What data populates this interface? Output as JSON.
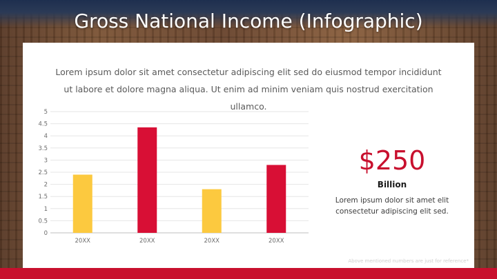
{
  "slide": {
    "title": "Gross National Income (Infographic)",
    "description": "Lorem ipsum dolor sit amet consectetur adipiscing elit sed do eiusmod tempor incididunt ut labore et dolore magna aliqua. Ut enim ad minim veniam quis nostrud exercitation ullamco.",
    "highlight_value": "$250",
    "highlight_unit": "Billion",
    "highlight_text": "Lorem ipsum dolor sit amet elit consectetur adipiscing elit sed.",
    "footnote": "Above mentioned numbers are just for reference*"
  },
  "colors": {
    "accent_red": "#c8102e",
    "bar_yellow": "#fcc93f",
    "bar_red": "#d80f35",
    "footer": "#c8102e"
  },
  "chart_data": {
    "type": "bar",
    "categories": [
      "20XX",
      "20XX",
      "20XX",
      "20XX"
    ],
    "values": [
      2.4,
      4.35,
      1.8,
      2.8
    ],
    "bar_colors": [
      "#fcc93f",
      "#d80f35",
      "#fcc93f",
      "#d80f35"
    ],
    "title": "",
    "xlabel": "",
    "ylabel": "",
    "ylim": [
      0,
      5
    ],
    "yticks": [
      "0",
      "0.5",
      "1",
      "1.5",
      "2",
      "2.5",
      "3",
      "3.5",
      "4",
      "4.5",
      "5"
    ],
    "grid": true,
    "legend": "none"
  }
}
